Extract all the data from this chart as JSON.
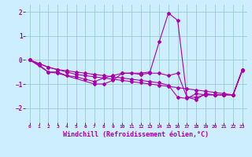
{
  "background_color": "#cceeff",
  "grid_color": "#99cccc",
  "line_color": "#aa00aa",
  "xlabel": "Windchill (Refroidissement éolien,°C)",
  "xlim": [
    -0.5,
    23.5
  ],
  "ylim": [
    -2.6,
    2.3
  ],
  "yticks": [
    -2,
    -1,
    0,
    1,
    2
  ],
  "xticks": [
    0,
    1,
    2,
    3,
    4,
    5,
    6,
    7,
    8,
    9,
    10,
    11,
    12,
    13,
    14,
    15,
    16,
    17,
    18,
    19,
    20,
    21,
    22,
    23
  ],
  "series1_x": [
    0,
    1,
    2,
    3,
    4,
    5,
    6,
    7,
    8,
    9,
    10,
    11,
    12,
    13,
    14,
    15,
    16,
    17,
    18,
    19,
    20,
    21,
    22,
    23
  ],
  "series1_y": [
    0.0,
    -0.15,
    -0.3,
    -0.4,
    -0.5,
    -0.6,
    -0.65,
    -0.7,
    -0.75,
    -0.8,
    -0.85,
    -0.9,
    -0.95,
    -1.0,
    -1.05,
    -1.1,
    -1.15,
    -1.2,
    -1.25,
    -1.3,
    -1.35,
    -1.4,
    -1.45,
    -0.45
  ],
  "series2_x": [
    0,
    1,
    2,
    3,
    4,
    5,
    6,
    7,
    8,
    9,
    10,
    11,
    12,
    13,
    14,
    15,
    16,
    17,
    18,
    19,
    20,
    21,
    22,
    23
  ],
  "series2_y": [
    0.0,
    -0.2,
    -0.5,
    -0.5,
    -0.65,
    -0.7,
    -0.8,
    -0.9,
    -0.75,
    -0.65,
    -0.55,
    -0.55,
    -0.6,
    -0.55,
    -0.55,
    -0.65,
    -0.55,
    -1.55,
    -1.55,
    -1.45,
    -1.45,
    -1.45,
    -1.45,
    -0.4
  ],
  "series3_x": [
    0,
    1,
    2,
    3,
    4,
    5,
    6,
    7,
    8,
    9,
    10,
    11,
    12,
    13,
    14,
    15,
    16,
    17,
    18,
    19,
    20,
    21,
    22,
    23
  ],
  "series3_y": [
    0.0,
    -0.15,
    -0.3,
    -0.4,
    -0.45,
    -0.5,
    -0.55,
    -0.6,
    -0.65,
    -0.7,
    -0.75,
    -0.8,
    -0.85,
    -0.9,
    -0.95,
    -1.05,
    -1.55,
    -1.6,
    -1.4,
    -1.45,
    -1.45,
    -1.45,
    -1.45,
    -0.4
  ],
  "series4_x": [
    0,
    2,
    3,
    7,
    8,
    9,
    10,
    12,
    13,
    14,
    15,
    16,
    17,
    18,
    19,
    20,
    21,
    22,
    23
  ],
  "series4_y": [
    0.0,
    -0.5,
    -0.55,
    -1.0,
    -1.0,
    -0.85,
    -0.55,
    -0.55,
    -0.5,
    0.75,
    1.95,
    1.65,
    -1.55,
    -1.65,
    -1.4,
    -1.45,
    -1.45,
    -1.45,
    -0.4
  ]
}
